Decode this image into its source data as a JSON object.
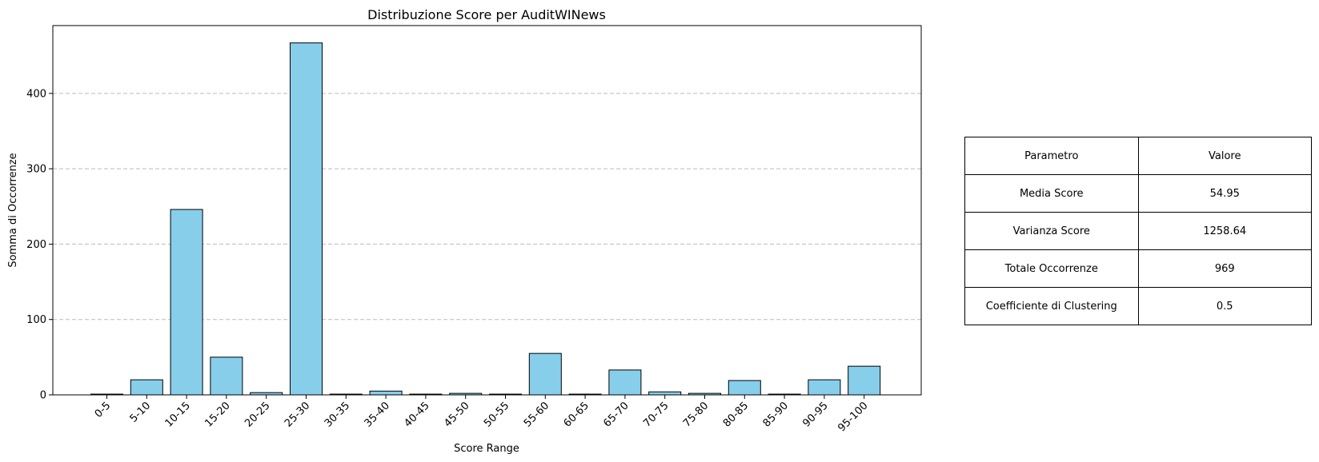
{
  "chart_data": {
    "type": "bar",
    "title": "Distribuzione Score per AuditWINews",
    "xlabel": "Score Range",
    "ylabel": "Somma di Occorrenze",
    "categories": [
      "0-5",
      "5-10",
      "10-15",
      "15-20",
      "20-25",
      "25-30",
      "30-35",
      "35-40",
      "40-45",
      "45-50",
      "50-55",
      "55-60",
      "60-65",
      "65-70",
      "70-75",
      "75-80",
      "80-85",
      "85-90",
      "90-95",
      "95-100"
    ],
    "values": [
      1,
      20,
      246,
      50,
      3,
      467,
      1,
      5,
      1,
      2,
      1,
      55,
      1,
      33,
      4,
      2,
      19,
      1,
      20,
      38
    ],
    "ylim": [
      0,
      490
    ],
    "yticks": [
      0,
      100,
      200,
      300,
      400
    ],
    "grid": "y-dashed",
    "bar_color": "#87ceeb",
    "bar_edge_color": "#000000"
  },
  "stats_table": {
    "rows": [
      [
        "Parametro",
        "Valore"
      ],
      [
        "Media Score",
        "54.95"
      ],
      [
        "Varianza Score",
        "1258.64"
      ],
      [
        "Totale Occorrenze",
        "969"
      ],
      [
        "Coefficiente di Clustering",
        "0.5"
      ]
    ]
  }
}
